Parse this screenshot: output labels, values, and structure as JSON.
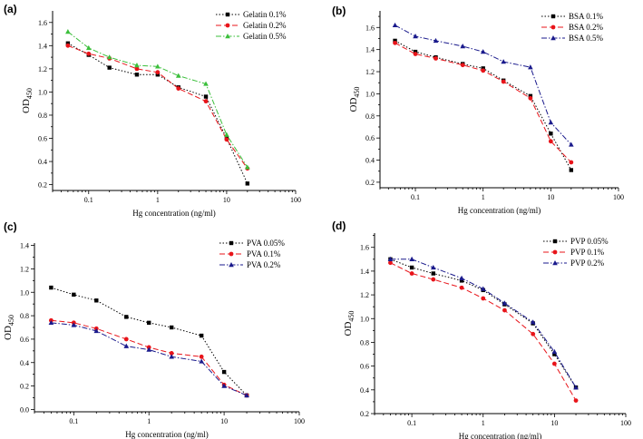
{
  "chart_data": [
    {
      "panel": "(a)",
      "type": "line",
      "xlabel": "Hg concentration (ng/ml)",
      "ylabel": "OD",
      "ylabel_sub": "450",
      "xscale": "log",
      "xlim": [
        0.03,
        100
      ],
      "ylim": [
        0.15,
        1.7
      ],
      "xticks": [
        0.1,
        1,
        10,
        100
      ],
      "xtick_labels": [
        "0.1",
        "1",
        "10",
        "100"
      ],
      "yticks": [
        0.2,
        0.4,
        0.6,
        0.8,
        1.0,
        1.2,
        1.4,
        1.6
      ],
      "ytick_labels": [
        "0.2",
        "0.4",
        "0.6",
        "0.8",
        "1.0",
        "1.2",
        "1.4",
        "1.6"
      ],
      "legend_position": "top-right",
      "x": [
        0.05,
        0.1,
        0.2,
        0.5,
        1,
        2,
        5,
        10,
        20
      ],
      "series": [
        {
          "name": "Gelatin 0.1%",
          "color": "#000000",
          "dash": "1.5,2",
          "marker": "square",
          "values": [
            1.42,
            1.32,
            1.21,
            1.15,
            1.15,
            1.04,
            0.96,
            0.6,
            0.21
          ]
        },
        {
          "name": "Gelatin 0.2%",
          "color": "#e8141a",
          "dash": "6,3",
          "marker": "circle",
          "values": [
            1.4,
            1.33,
            1.29,
            1.2,
            1.17,
            1.03,
            0.92,
            0.59,
            0.34
          ]
        },
        {
          "name": "Gelatin 0.5%",
          "color": "#3bbf3b",
          "dash": "6,2,1.5,2",
          "marker": "triangle",
          "values": [
            1.52,
            1.38,
            1.3,
            1.23,
            1.22,
            1.14,
            1.07,
            0.63,
            0.35
          ]
        }
      ]
    },
    {
      "panel": "(b)",
      "type": "line",
      "xlabel": "Hg concentration (ng/ml)",
      "ylabel": "OD",
      "ylabel_sub": "450",
      "xscale": "log",
      "xlim": [
        0.03,
        100
      ],
      "ylim": [
        0.15,
        1.75
      ],
      "xticks": [
        0.1,
        1,
        10,
        100
      ],
      "xtick_labels": [
        "0.1",
        "1",
        "10",
        "100"
      ],
      "yticks": [
        0.2,
        0.4,
        0.6,
        0.8,
        1.0,
        1.2,
        1.4,
        1.6
      ],
      "ytick_labels": [
        "0.2",
        "0.4",
        "0.6",
        "0.8",
        "1.0",
        "1.2",
        "1.4",
        "1.6"
      ],
      "legend_position": "top-right",
      "x": [
        0.05,
        0.1,
        0.2,
        0.5,
        1,
        2,
        5,
        10,
        20
      ],
      "series": [
        {
          "name": "BSA 0.1%",
          "color": "#000000",
          "dash": "1.5,2",
          "marker": "square",
          "values": [
            1.48,
            1.38,
            1.33,
            1.27,
            1.23,
            1.12,
            0.98,
            0.64,
            0.31
          ]
        },
        {
          "name": "BSA 0.2%",
          "color": "#e8141a",
          "dash": "6,3",
          "marker": "circle",
          "values": [
            1.46,
            1.36,
            1.32,
            1.26,
            1.21,
            1.11,
            0.96,
            0.57,
            0.38
          ]
        },
        {
          "name": "BSA 0.5%",
          "color": "#1a1a8c",
          "dash": "6,2,1.5,2",
          "marker": "triangle",
          "values": [
            1.62,
            1.52,
            1.48,
            1.43,
            1.38,
            1.29,
            1.24,
            0.74,
            0.54
          ]
        }
      ]
    },
    {
      "panel": "(c)",
      "type": "line",
      "xlabel": "Hg concentration (ng/ml)",
      "ylabel": "OD",
      "ylabel_sub": "450",
      "xscale": "log",
      "xlim": [
        0.03,
        100
      ],
      "ylim": [
        -0.02,
        1.42
      ],
      "xticks": [
        0.1,
        1,
        10,
        100
      ],
      "xtick_labels": [
        "0.1",
        "1",
        "10",
        "100"
      ],
      "yticks": [
        0.0,
        0.2,
        0.4,
        0.6,
        0.8,
        1.0,
        1.2,
        1.4
      ],
      "ytick_labels": [
        "0.0",
        "0.2",
        "0.4",
        "0.6",
        "0.8",
        "1.0",
        "1.2",
        "1.4"
      ],
      "legend_position": "top-right",
      "x": [
        0.05,
        0.1,
        0.2,
        0.5,
        1,
        2,
        5,
        10,
        20
      ],
      "series": [
        {
          "name": "PVA 0.05%",
          "color": "#000000",
          "dash": "1.5,2",
          "marker": "square",
          "values": [
            1.04,
            0.98,
            0.93,
            0.79,
            0.74,
            0.7,
            0.63,
            0.32,
            0.12
          ]
        },
        {
          "name": "PVA 0.1%",
          "color": "#e8141a",
          "dash": "6,3",
          "marker": "circle",
          "values": [
            0.76,
            0.74,
            0.69,
            0.6,
            0.53,
            0.48,
            0.45,
            0.21,
            0.12
          ]
        },
        {
          "name": "PVA 0.2%",
          "color": "#1a1a8c",
          "dash": "6,2,1.5,2",
          "marker": "triangle",
          "values": [
            0.74,
            0.72,
            0.67,
            0.54,
            0.51,
            0.45,
            0.41,
            0.2,
            0.12
          ]
        }
      ]
    },
    {
      "panel": "(d)",
      "type": "line",
      "xlabel": "Hg concentration (ng/ml)",
      "ylabel": "OD",
      "ylabel_sub": "450",
      "xscale": "log",
      "xlim": [
        0.03,
        100
      ],
      "ylim": [
        0.2,
        1.72
      ],
      "xticks": [
        0.1,
        1,
        10,
        100
      ],
      "xtick_labels": [
        "0.1",
        "1",
        "10",
        "100"
      ],
      "yticks": [
        0.2,
        0.4,
        0.6,
        0.8,
        1.0,
        1.2,
        1.4,
        1.6
      ],
      "ytick_labels": [
        "0.2",
        "0.4",
        "0.6",
        "0.8",
        "1.0",
        "1.2",
        "1.4",
        "1.6"
      ],
      "legend_position": "top-right",
      "x": [
        0.05,
        0.1,
        0.2,
        0.5,
        1,
        2,
        5,
        10,
        20
      ],
      "series": [
        {
          "name": "PVP 0.05%",
          "color": "#000000",
          "dash": "1.5,2",
          "marker": "square",
          "values": [
            1.5,
            1.43,
            1.38,
            1.32,
            1.24,
            1.12,
            0.96,
            0.7,
            0.42
          ]
        },
        {
          "name": "PVP 0.1%",
          "color": "#e8141a",
          "dash": "6,3",
          "marker": "circle",
          "values": [
            1.47,
            1.38,
            1.33,
            1.26,
            1.17,
            1.07,
            0.87,
            0.62,
            0.31
          ]
        },
        {
          "name": "PVP 0.2%",
          "color": "#1a1a8c",
          "dash": "6,2,1.5,2",
          "marker": "triangle",
          "values": [
            1.5,
            1.5,
            1.43,
            1.34,
            1.25,
            1.13,
            0.97,
            0.72,
            0.42
          ]
        }
      ]
    }
  ]
}
